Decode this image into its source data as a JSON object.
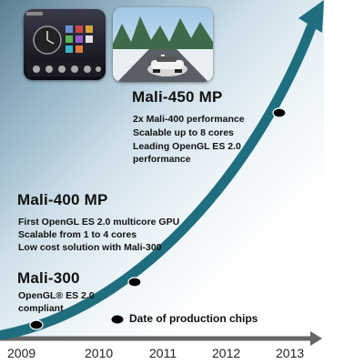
{
  "years": [
    "2009",
    "2010",
    "2011",
    "2012",
    "2013"
  ],
  "milestones": [
    {
      "title": "Mali-300",
      "bullets": [
        "OpenGL® ES 2.0",
        "compliant"
      ]
    },
    {
      "title": "Mali-400 MP",
      "bullets": [
        "First OpenGL ES 2.0 multicore GPU",
        "Scalable  from 1 to 4 cores",
        "Low cost solution with Mali-300"
      ]
    },
    {
      "title": "Mali-450 MP",
      "bullets": [
        "2x Mali-400 performance",
        "Scalable up to 8 cores",
        "Leading OpenGL ES 2.0",
        "performance"
      ]
    }
  ],
  "legend": {
    "label": "Date of production chips",
    "icon": "black-ellipse-marker-icon"
  },
  "colors": {
    "curve": "#1e6e80",
    "marker": "#000000",
    "axis": "#666666"
  },
  "images": [
    {
      "icon": "phone-home-screen-thumbnail-icon"
    },
    {
      "icon": "racing-game-thumbnail-icon"
    }
  ]
}
